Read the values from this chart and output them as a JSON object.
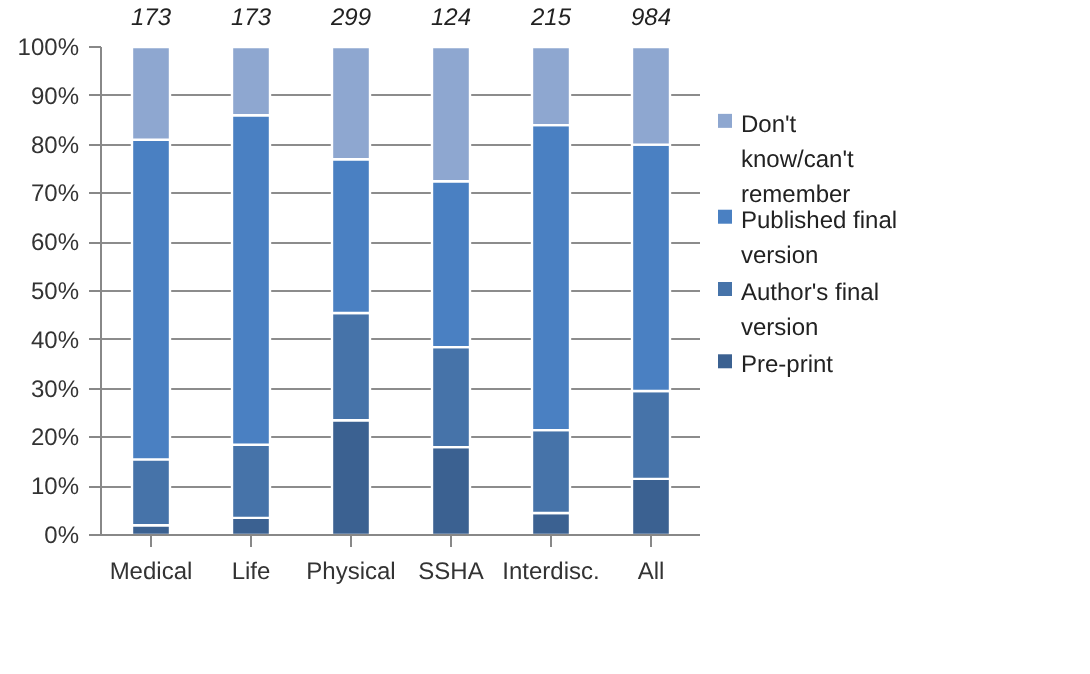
{
  "chart_data": {
    "type": "bar",
    "stacked": true,
    "categories": [
      "Medical",
      "Life",
      "Physical",
      "SSHA",
      "Interdisc.",
      "All"
    ],
    "series": [
      {
        "name": "Pre-print",
        "color": "#3b6191",
        "values": [
          2,
          3.5,
          23.5,
          18,
          4.5,
          11.5
        ]
      },
      {
        "name": "Author's final version",
        "color": "#4673a9",
        "values": [
          13.5,
          15,
          22,
          20.5,
          17,
          18
        ]
      },
      {
        "name": "Published final version",
        "color": "#4a80c2",
        "values": [
          65.5,
          67.5,
          31.5,
          34,
          62.5,
          50.5
        ]
      },
      {
        "name": "Don't know/can't remember",
        "color": "#8ea7d0",
        "values": [
          19,
          14,
          23,
          27.5,
          16,
          20
        ]
      }
    ],
    "ylim": [
      0,
      100
    ],
    "yticks": [
      {
        "value": 0,
        "label": "0%"
      },
      {
        "value": 10,
        "label": "10%"
      },
      {
        "value": 20,
        "label": "20%"
      },
      {
        "value": 30,
        "label": "30%"
      },
      {
        "value": 40,
        "label": "40%"
      },
      {
        "value": 50,
        "label": "50%"
      },
      {
        "value": 60,
        "label": "60%"
      },
      {
        "value": 70,
        "label": "70%"
      },
      {
        "value": 80,
        "label": "80%"
      },
      {
        "value": 90,
        "label": "90%"
      },
      {
        "value": 100,
        "label": "100%"
      }
    ],
    "grid": "y",
    "legend": "right",
    "annotations": [
      "173",
      "173",
      "299",
      "124",
      "215",
      "984"
    ]
  }
}
